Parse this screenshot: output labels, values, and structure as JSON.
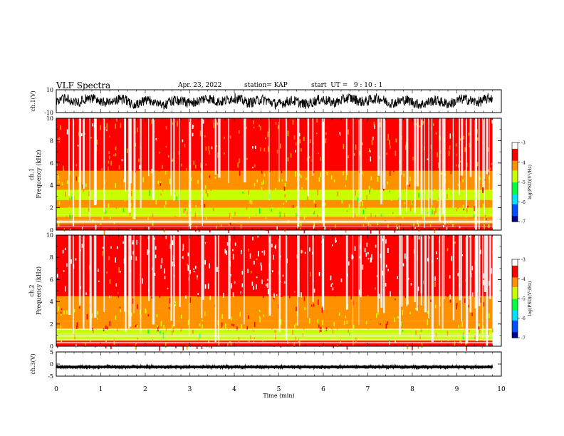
{
  "header": {
    "title": "VLF Spectra",
    "date": "Apr. 23, 2022",
    "station": "station= KAP",
    "start": "start  UT =   9 : 10 : 1"
  },
  "chart_data": [
    {
      "type": "line",
      "name": "waveform-ch1",
      "ylabel": "ch.1(V)",
      "ylim": [
        -10,
        10
      ],
      "yticks": [
        "10",
        "-10"
      ],
      "xlim": [
        0,
        10
      ],
      "data_end": 9.8,
      "baseline": 0,
      "amplitude": 5
    },
    {
      "type": "heatmap",
      "name": "spectrogram-ch1",
      "ylabel_top": "ch.1",
      "ylabel": "Frequency  (kHz)",
      "ylim": [
        0,
        10
      ],
      "yticks": [
        "0",
        "2",
        "4",
        "6",
        "8",
        "10"
      ],
      "xlim": [
        0,
        10
      ],
      "data_end": 9.8,
      "colorbar": {
        "label": "log(PSD)(V²/Hz)",
        "range": [
          -7,
          -3
        ],
        "ticks": [
          "-3",
          "-4",
          "-5",
          "-6",
          "-7"
        ],
        "colors": [
          "#000090",
          "#0050ff",
          "#00e0ff",
          "#00ff40",
          "#c8ff00",
          "#ff9000",
          "#ff0000",
          "#ffffff"
        ]
      },
      "bands": [
        {
          "from": 0,
          "to": 0.5,
          "level": -3.6
        },
        {
          "from": 0.5,
          "to": 1.2,
          "level": -4.3
        },
        {
          "from": 1.2,
          "to": 2.0,
          "level": -4.7
        },
        {
          "from": 2.0,
          "to": 2.7,
          "level": -4.2
        },
        {
          "from": 2.7,
          "to": 3.6,
          "level": -4.6
        },
        {
          "from": 3.6,
          "to": 4.3,
          "level": -4.2
        },
        {
          "from": 4.3,
          "to": 5.3,
          "level": -4.4
        },
        {
          "from": 5.3,
          "to": 10,
          "level": -3.8
        }
      ]
    },
    {
      "type": "heatmap",
      "name": "spectrogram-ch2",
      "ylabel_top": "ch.2",
      "ylabel": "Frequency  (kHz)",
      "ylim": [
        0,
        10
      ],
      "yticks": [
        "0",
        "2",
        "4",
        "6",
        "8",
        "10"
      ],
      "xlim": [
        0,
        10
      ],
      "data_end": 9.8,
      "colorbar": {
        "label": "log(PSD)(V²/Hz)",
        "range": [
          -7,
          -3
        ],
        "ticks": [
          "-3",
          "-4",
          "-5",
          "-6",
          "-7"
        ],
        "colors": [
          "#000090",
          "#0050ff",
          "#00e0ff",
          "#00ff40",
          "#c8ff00",
          "#ff9000",
          "#ff0000",
          "#ffffff"
        ]
      },
      "bands": [
        {
          "from": 0,
          "to": 0.5,
          "level": -3.8
        },
        {
          "from": 0.5,
          "to": 1.6,
          "level": -4.5
        },
        {
          "from": 1.6,
          "to": 2.3,
          "level": -4.1
        },
        {
          "from": 2.3,
          "to": 3.4,
          "level": -4.4
        },
        {
          "from": 3.4,
          "to": 4.5,
          "level": -3.9
        },
        {
          "from": 4.5,
          "to": 10,
          "level": -3.3
        }
      ]
    },
    {
      "type": "line",
      "name": "waveform-ch3",
      "ylabel": "ch.3(V)",
      "ylim": [
        -5,
        5
      ],
      "yticks": [
        "5",
        "0",
        "-5"
      ],
      "xlim": [
        0,
        10
      ],
      "data_end": 9.8,
      "baseline": -1.2,
      "amplitude": 0.5
    }
  ],
  "xaxis": {
    "label": "Time  (min)",
    "ticks": [
      "0",
      "1",
      "2",
      "3",
      "4",
      "5",
      "6",
      "7",
      "8",
      "9",
      "10"
    ]
  }
}
